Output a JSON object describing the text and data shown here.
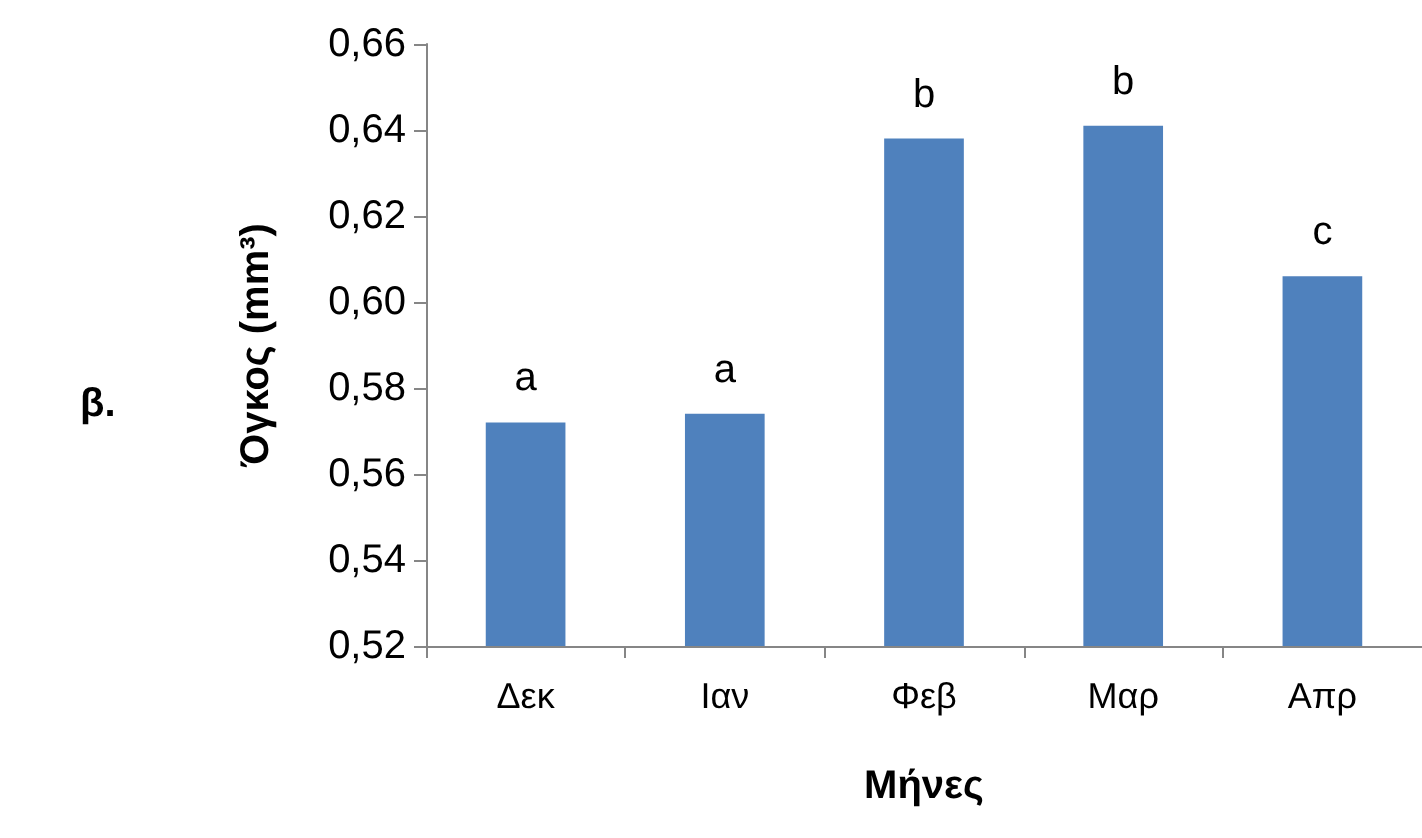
{
  "chart_data": {
    "type": "bar",
    "xlabel": "Μήνες",
    "ylabel": "Όγκος (mm³)",
    "categories": [
      "Δεκ",
      "Ιαν",
      "Φεβ",
      "Μαρ",
      "Απρ"
    ],
    "values": [
      0.572,
      0.574,
      0.638,
      0.641,
      0.606
    ],
    "color": "#4f81bd",
    "ylim": [
      0.52,
      0.66
    ],
    "yticks": [
      {
        "value": 0.52,
        "label": "0,52"
      },
      {
        "value": 0.54,
        "label": "0,54"
      },
      {
        "value": 0.56,
        "label": "0,56"
      },
      {
        "value": 0.58,
        "label": "0,58"
      },
      {
        "value": 0.6,
        "label": "0,60"
      },
      {
        "value": 0.62,
        "label": "0,62"
      },
      {
        "value": 0.64,
        "label": "0,64"
      },
      {
        "value": 0.66,
        "label": "0,66"
      }
    ],
    "grid": false,
    "annotations": [
      {
        "text": "a",
        "x": "Δεκ",
        "y": 0.572
      },
      {
        "text": "a",
        "x": "Ιαν",
        "y": 0.574
      },
      {
        "text": "b",
        "x": "Φεβ",
        "y": 0.638
      },
      {
        "text": "b",
        "x": "Μαρ",
        "y": 0.641
      },
      {
        "text": "c",
        "x": "Απρ",
        "y": 0.606
      },
      "β."
    ]
  }
}
